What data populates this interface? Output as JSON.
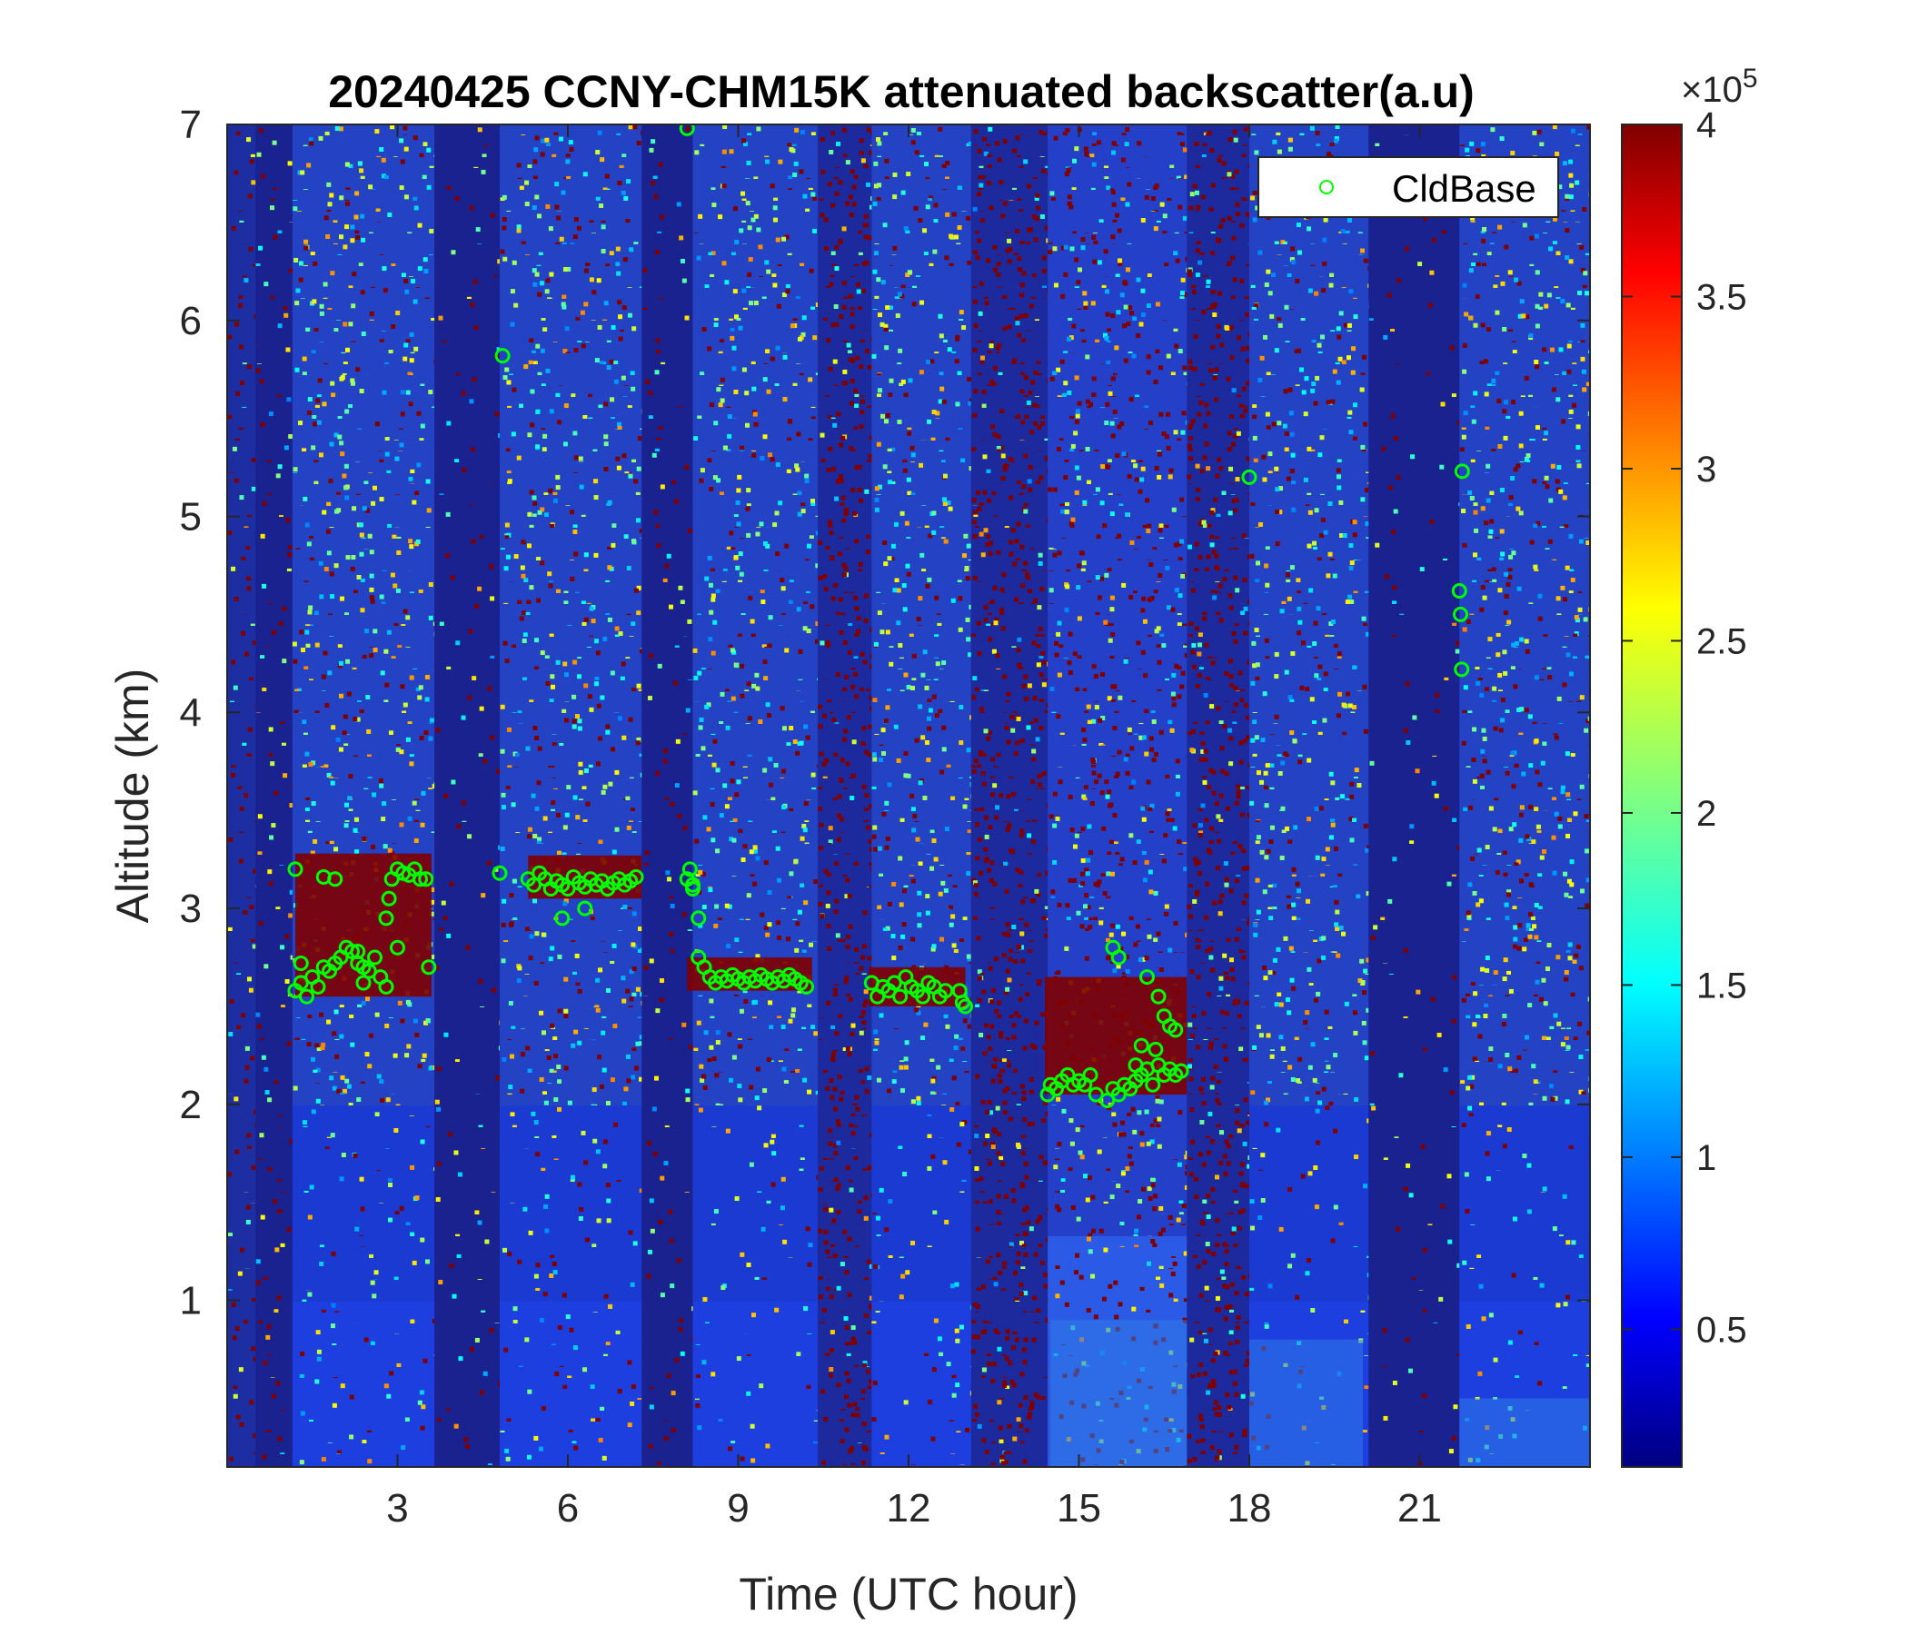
{
  "chart_data": {
    "type": "heatmap",
    "title": "20240425 CCNY-CHM15K attenuated backscatter(a.u)",
    "xlabel": "Time (UTC hour)",
    "ylabel": "Altitude (km)",
    "xlim": [
      0,
      24
    ],
    "ylim": [
      0.15,
      7
    ],
    "xticks": [
      3,
      6,
      9,
      12,
      15,
      18,
      21
    ],
    "yticks": [
      1,
      2,
      3,
      4,
      5,
      6,
      7
    ],
    "colormap": "jet",
    "colorbar": {
      "clim": [
        0.1,
        4
      ],
      "ticks": [
        0.5,
        1,
        1.5,
        2,
        2.5,
        3,
        3.5,
        4
      ],
      "exponent_label": "×10",
      "exponent_power": "5"
    },
    "legend": {
      "position": "top-right",
      "entries": [
        "CldBase"
      ],
      "marker_color": "#00ff00"
    },
    "background_segments": [
      {
        "x": [
          0.0,
          0.5
        ],
        "regime": "noisy-dark"
      },
      {
        "x": [
          0.5,
          1.15
        ],
        "regime": "dark"
      },
      {
        "x": [
          1.15,
          3.65
        ],
        "regime": "normal"
      },
      {
        "x": [
          3.65,
          4.8
        ],
        "regime": "dark"
      },
      {
        "x": [
          4.8,
          7.3
        ],
        "regime": "normal"
      },
      {
        "x": [
          7.3,
          8.2
        ],
        "regime": "dark"
      },
      {
        "x": [
          8.2,
          10.4
        ],
        "regime": "normal"
      },
      {
        "x": [
          10.4,
          11.35
        ],
        "regime": "red-noise"
      },
      {
        "x": [
          11.35,
          13.1
        ],
        "regime": "normal"
      },
      {
        "x": [
          13.1,
          14.45
        ],
        "regime": "red-noise"
      },
      {
        "x": [
          14.45,
          16.9
        ],
        "regime": "mixed"
      },
      {
        "x": [
          16.9,
          18.0
        ],
        "regime": "red-noise"
      },
      {
        "x": [
          18.0,
          20.1
        ],
        "regime": "normal"
      },
      {
        "x": [
          20.1,
          21.7
        ],
        "regime": "dark"
      },
      {
        "x": [
          21.7,
          24.0
        ],
        "regime": "normal"
      }
    ],
    "cloud_layers": [
      {
        "x": [
          1.2,
          3.6
        ],
        "y_top": 3.28,
        "y_bottom": 2.55
      },
      {
        "x": [
          5.3,
          7.3
        ],
        "y_top": 3.27,
        "y_bottom": 3.05
      },
      {
        "x": [
          8.1,
          10.3
        ],
        "y_top": 2.75,
        "y_bottom": 2.58
      },
      {
        "x": [
          11.3,
          13.0
        ],
        "y_top": 2.7,
        "y_bottom": 2.5
      },
      {
        "x": [
          14.4,
          16.9
        ],
        "y_top": 2.65,
        "y_bottom": 2.05
      }
    ],
    "series": [
      {
        "name": "CldBase",
        "type": "scatter",
        "x": [
          1.2,
          1.3,
          1.4,
          1.5,
          1.6,
          1.7,
          1.8,
          1.9,
          2.0,
          2.1,
          2.2,
          2.3,
          2.4,
          2.5,
          2.6,
          2.7,
          2.8,
          2.85,
          2.9,
          3.0,
          3.1,
          3.2,
          3.3,
          3.4,
          3.5,
          1.2,
          1.3,
          1.7,
          1.9,
          2.3,
          2.4,
          2.8,
          3.0,
          3.55,
          4.8,
          5.3,
          5.4,
          5.5,
          5.6,
          5.7,
          5.8,
          5.9,
          6.0,
          6.1,
          6.2,
          6.3,
          6.4,
          6.5,
          6.6,
          6.7,
          6.8,
          6.9,
          7.0,
          7.1,
          7.2,
          5.9,
          6.3,
          8.1,
          8.15,
          8.2,
          8.3,
          8.4,
          8.5,
          8.6,
          8.7,
          8.8,
          8.9,
          9.0,
          9.1,
          9.2,
          9.3,
          9.4,
          9.5,
          9.6,
          9.7,
          9.8,
          9.9,
          10.0,
          10.1,
          10.2,
          8.3,
          8.2,
          4.85,
          8.1,
          11.35,
          11.45,
          11.55,
          11.65,
          11.75,
          11.85,
          11.95,
          12.05,
          12.15,
          12.25,
          12.35,
          12.45,
          12.55,
          12.65,
          12.9,
          12.95,
          13.0,
          14.45,
          14.5,
          14.6,
          14.7,
          14.8,
          14.9,
          15.0,
          15.1,
          15.2,
          15.3,
          15.5,
          15.6,
          15.7,
          15.8,
          15.9,
          16.0,
          16.1,
          16.2,
          16.3,
          16.4,
          16.5,
          16.6,
          16.7,
          16.8,
          15.6,
          15.7,
          16.0,
          16.1,
          16.2,
          16.4,
          16.5,
          16.6,
          16.7,
          16.35,
          18.0,
          21.7,
          21.72,
          21.74,
          21.75
        ],
        "y": [
          2.58,
          2.62,
          2.55,
          2.65,
          2.6,
          2.7,
          2.68,
          2.72,
          2.75,
          2.8,
          2.78,
          2.72,
          2.7,
          2.68,
          2.75,
          2.65,
          2.95,
          3.05,
          3.15,
          3.2,
          3.18,
          3.17,
          3.2,
          3.15,
          3.15,
          3.2,
          2.72,
          3.16,
          3.15,
          2.78,
          2.62,
          2.6,
          2.8,
          2.7,
          3.18,
          3.15,
          3.12,
          3.18,
          3.15,
          3.1,
          3.14,
          3.12,
          3.1,
          3.16,
          3.13,
          3.11,
          3.15,
          3.12,
          3.14,
          3.1,
          3.13,
          3.15,
          3.12,
          3.14,
          3.16,
          2.95,
          3.0,
          3.15,
          3.2,
          3.1,
          2.75,
          2.7,
          2.65,
          2.62,
          2.65,
          2.63,
          2.66,
          2.64,
          2.62,
          2.65,
          2.63,
          2.66,
          2.64,
          2.62,
          2.65,
          2.63,
          2.66,
          2.64,
          2.62,
          2.6,
          2.95,
          3.12,
          5.82,
          6.98,
          2.62,
          2.55,
          2.6,
          2.58,
          2.62,
          2.55,
          2.65,
          2.6,
          2.58,
          2.55,
          2.62,
          2.6,
          2.55,
          2.58,
          2.58,
          2.52,
          2.5,
          2.05,
          2.1,
          2.08,
          2.12,
          2.15,
          2.1,
          2.12,
          2.1,
          2.15,
          2.05,
          2.02,
          2.08,
          2.05,
          2.1,
          2.08,
          2.12,
          2.15,
          2.18,
          2.1,
          2.2,
          2.15,
          2.18,
          2.15,
          2.17,
          2.8,
          2.75,
          2.2,
          2.3,
          2.65,
          2.55,
          2.45,
          2.4,
          2.38,
          2.28,
          5.2,
          4.62,
          4.5,
          4.22,
          5.23
        ]
      }
    ]
  }
}
